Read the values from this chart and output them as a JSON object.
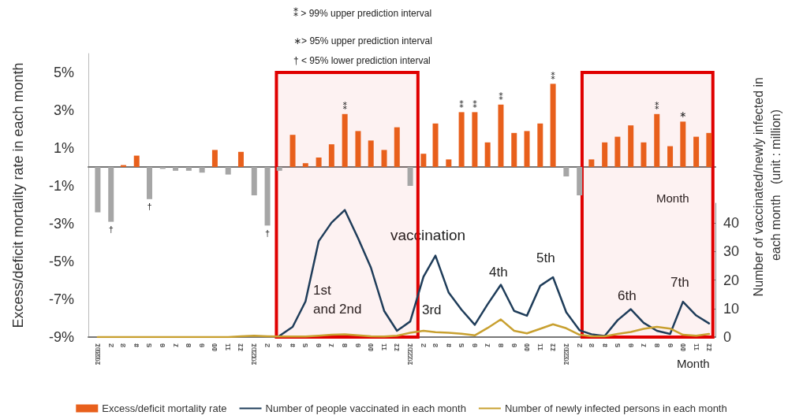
{
  "chart_data": {
    "type": "bar",
    "ylabel": "Excess/deficit mortality rate in each month",
    "y2label": "Number of vaccinated/newly infected in each month   (unit : million)",
    "xlabel": "Month",
    "x": [
      "2020-01",
      "2020-02",
      "2020-03",
      "2020-04",
      "2020-05",
      "2020-06",
      "2020-07",
      "2020-08",
      "2020-09",
      "2020-10",
      "2020-11",
      "2020-12",
      "2021-01",
      "2021-02",
      "2021-03",
      "2021-04",
      "2021-05",
      "2021-06",
      "2021-07",
      "2021-08",
      "2021-09",
      "2021-10",
      "2021-11",
      "2021-12",
      "2022-01",
      "2022-02",
      "2022-03",
      "2022-04",
      "2022-05",
      "2022-06",
      "2022-07",
      "2022-08",
      "2022-09",
      "2022-10",
      "2022-11",
      "2022-12",
      "2023-01",
      "2023-02",
      "2023-03",
      "2023-04",
      "2023-05",
      "2023-06",
      "2023-07",
      "2023-08",
      "2023-09",
      "2023-10",
      "2023-11",
      "2023-12"
    ],
    "xlim": [
      "2019-12-10",
      "2023-12-16"
    ],
    "xticks": [
      {
        "value": "2020-01",
        "label": "2020.1"
      },
      {
        "value": "2020-02",
        "label": "2"
      },
      {
        "value": "2020-03",
        "label": "3"
      },
      {
        "value": "2020-04",
        "label": "4"
      },
      {
        "value": "2020-05",
        "label": "5"
      },
      {
        "value": "2020-06",
        "label": "6"
      },
      {
        "value": "2020-07",
        "label": "7"
      },
      {
        "value": "2020-08",
        "label": "8"
      },
      {
        "value": "2020-09",
        "label": "9"
      },
      {
        "value": "2020-10",
        "label": "10"
      },
      {
        "value": "2020-11",
        "label": "11"
      },
      {
        "value": "2020-12",
        "label": "12"
      },
      {
        "value": "2021-01",
        "label": "2021.1"
      },
      {
        "value": "2021-02",
        "label": "2"
      },
      {
        "value": "2021-03",
        "label": "3"
      },
      {
        "value": "2021-04",
        "label": "4"
      },
      {
        "value": "2021-05",
        "label": "5"
      },
      {
        "value": "2021-06",
        "label": "6"
      },
      {
        "value": "2021-07",
        "label": "7"
      },
      {
        "value": "2021-08",
        "label": "8"
      },
      {
        "value": "2021-09",
        "label": "9"
      },
      {
        "value": "2021-10",
        "label": "10"
      },
      {
        "value": "2021-11",
        "label": "11"
      },
      {
        "value": "2021-12",
        "label": "12"
      },
      {
        "value": "2022-01",
        "label": "2022.1"
      },
      {
        "value": "2022-02",
        "label": "2"
      },
      {
        "value": "2022-03",
        "label": "3"
      },
      {
        "value": "2022-04",
        "label": "4"
      },
      {
        "value": "2022-05",
        "label": "5"
      },
      {
        "value": "2022-06",
        "label": "6"
      },
      {
        "value": "2022-07",
        "label": "7"
      },
      {
        "value": "2022-08",
        "label": "8"
      },
      {
        "value": "2022-09",
        "label": "9"
      },
      {
        "value": "2022-10",
        "label": "10"
      },
      {
        "value": "2022-11",
        "label": "11"
      },
      {
        "value": "2022-12",
        "label": "12"
      },
      {
        "value": "2023-01",
        "label": "2023.1"
      },
      {
        "value": "2023-02",
        "label": "2"
      },
      {
        "value": "2023-03",
        "label": "3"
      },
      {
        "value": "2023-04",
        "label": "4"
      },
      {
        "value": "2023-05",
        "label": "5"
      },
      {
        "value": "2023-06",
        "label": "6"
      },
      {
        "value": "2023-07",
        "label": "7"
      },
      {
        "value": "2023-08",
        "label": "8"
      },
      {
        "value": "2023-09",
        "label": "9"
      },
      {
        "value": "2023-10",
        "label": "10"
      },
      {
        "value": "2023-11",
        "label": "11"
      },
      {
        "value": "2023-12",
        "label": "12"
      }
    ],
    "ylim": [
      -9,
      6
    ],
    "yticks": [
      {
        "value": -9,
        "label": "-9%"
      },
      {
        "value": -7,
        "label": "-7%"
      },
      {
        "value": -5,
        "label": "-5%"
      },
      {
        "value": -3,
        "label": "-3%"
      },
      {
        "value": -1,
        "label": "-1%"
      },
      {
        "value": 1,
        "label": "1%"
      },
      {
        "value": 3,
        "label": "3%"
      },
      {
        "value": 5,
        "label": "5%"
      }
    ],
    "y2lim": [
      0,
      47
    ],
    "y2ticks": [
      0,
      10,
      20,
      30,
      40
    ],
    "legend": "bottom",
    "series": [
      {
        "name": "Excess/deficit mortality rate",
        "color": "#e8601c",
        "value_labels": [
          null,
          "†",
          null,
          null,
          "†",
          null,
          null,
          null,
          null,
          null,
          null,
          null,
          null,
          "†",
          null,
          null,
          null,
          null,
          null,
          "⁑",
          null,
          null,
          null,
          null,
          null,
          null,
          null,
          null,
          "⁑",
          "⁑",
          null,
          "⁑",
          null,
          null,
          null,
          "⁑",
          null,
          null,
          null,
          null,
          null,
          null,
          null,
          "⁑",
          null,
          "∗",
          null,
          null
        ],
        "values": [
          -2.4,
          -2.9,
          0.1,
          0.6,
          -1.7,
          -0.1,
          -0.2,
          -0.2,
          -0.3,
          0.9,
          -0.4,
          0.8,
          -1.5,
          -3.1,
          -0.2,
          1.7,
          0.2,
          0.5,
          1.2,
          2.8,
          1.9,
          1.4,
          0.9,
          2.1,
          -1.0,
          0.7,
          2.3,
          0.4,
          2.9,
          2.9,
          1.3,
          3.3,
          1.8,
          1.9,
          2.3,
          4.4,
          -0.5,
          -1.5,
          0.4,
          1.3,
          1.6,
          2.2,
          1.3,
          2.8,
          1.1,
          2.4,
          1.6,
          1.8
        ],
        "colors": [
          "#a6a6a6",
          "#a6a6a6",
          "#e8601c",
          "#e8601c",
          "#a6a6a6",
          "#a6a6a6",
          "#a6a6a6",
          "#a6a6a6",
          "#a6a6a6",
          "#e8601c",
          "#a6a6a6",
          "#e8601c",
          "#a6a6a6",
          "#a6a6a6",
          "#a6a6a6",
          "#e8601c",
          "#e8601c",
          "#e8601c",
          "#e8601c",
          "#e8601c",
          "#e8601c",
          "#e8601c",
          "#e8601c",
          "#e8601c",
          "#a6a6a6",
          "#e8601c",
          "#e8601c",
          "#e8601c",
          "#e8601c",
          "#e8601c",
          "#e8601c",
          "#e8601c",
          "#e8601c",
          "#e8601c",
          "#e8601c",
          "#e8601c",
          "#a6a6a6",
          "#a6a6a6",
          "#e8601c",
          "#e8601c",
          "#e8601c",
          "#e8601c",
          "#e8601c",
          "#e8601c",
          "#e8601c",
          "#e8601c",
          "#e8601c",
          "#e8601c"
        ]
      },
      {
        "name": "Number of people vaccinated in each month",
        "type": "line",
        "axis": "y2",
        "color": "#1f3d5a",
        "values": [
          null,
          null,
          null,
          null,
          null,
          null,
          null,
          null,
          null,
          null,
          null,
          null,
          null,
          null,
          0.4,
          3.6,
          12.5,
          33.7,
          40.2,
          44.6,
          34.7,
          24.4,
          9.2,
          2.2,
          5.5,
          21.2,
          28.6,
          15.6,
          9.6,
          4.3,
          11.5,
          18.4,
          9.2,
          7.5,
          18.0,
          21.0,
          8.7,
          2.4,
          1.0,
          0.4,
          5.9,
          9.8,
          5.0,
          2.2,
          1.1,
          12.4,
          7.6,
          4.8
        ]
      },
      {
        "name": "Number of newly infected persons in each month",
        "type": "line",
        "axis": "y2",
        "color": "#c8a030",
        "values": [
          0,
          0,
          0,
          0,
          0,
          0,
          0,
          0,
          0,
          0,
          0,
          0.3,
          0.5,
          0.3,
          0.2,
          0.2,
          0.2,
          0.5,
          0.8,
          1.0,
          0.6,
          0.3,
          0.2,
          0.5,
          1.5,
          2.2,
          1.7,
          1.5,
          1.2,
          0.6,
          3.2,
          6.2,
          2.2,
          1.3,
          2.9,
          4.5,
          3.1,
          0.8,
          0.3,
          0.3,
          1.1,
          1.8,
          2.9,
          3.6,
          3.0,
          0.8,
          0.5,
          1.1
        ]
      }
    ],
    "marker": "none",
    "bands": [
      {
        "axis": "x",
        "from": "2021-02-22",
        "to": "2022-01-19",
        "color": "#e00000"
      },
      {
        "axis": "x",
        "from": "2023-02-07",
        "to": "2023-12-10",
        "color": "#e00000"
      }
    ],
    "annotations": [
      "⁑ > 99% upper prediction interval",
      "∗> 95% upper prediction interval",
      "† < 95% lower prediction interval",
      "vaccination",
      "1st and 2nd",
      "3rd",
      "4th",
      "5th",
      "6th",
      "7th"
    ]
  }
}
